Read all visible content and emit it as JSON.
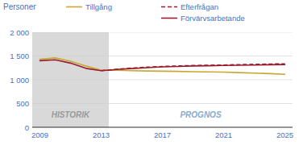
{
  "chart_data": {
    "type": "line",
    "y_label": "Personer",
    "xlim": [
      2008.5,
      2025.5
    ],
    "xticks": [
      2009,
      2013,
      2017,
      2021,
      2025
    ],
    "ylim": [
      0,
      2000
    ],
    "yticks": [
      0,
      500,
      {
        "value": 1000,
        "label": "1 000"
      },
      {
        "value": 1500,
        "label": "1 500"
      },
      {
        "value": 2000,
        "label": "2 000"
      }
    ],
    "grid": true,
    "legend": "top",
    "annotations": [
      {
        "text": "HISTORIK",
        "x_start": 2008.5,
        "x_end": 2013.5,
        "color": "#d9d9d9"
      },
      {
        "text": "PROGNOS"
      }
    ],
    "series": [
      {
        "name": "Tillgång",
        "color": "#c8a832",
        "line_style": "solid",
        "x": [
          2009,
          2010,
          2011,
          2012,
          2013,
          2014,
          2015,
          2016,
          2017,
          2018,
          2019,
          2020,
          2021,
          2022,
          2023,
          2024,
          2025
        ],
        "values": [
          1430,
          1460,
          1390,
          1290,
          1200,
          1200,
          1190,
          1185,
          1180,
          1175,
          1170,
          1165,
          1160,
          1150,
          1140,
          1130,
          1115
        ]
      },
      {
        "name": "Efterfrågan",
        "color": "#9b1c2e",
        "line_style": "dashed",
        "x": [
          2013,
          2014,
          2015,
          2016,
          2017,
          2018,
          2019,
          2020,
          2021,
          2022,
          2023,
          2024,
          2025
        ],
        "values": [
          1190,
          1220,
          1245,
          1265,
          1280,
          1290,
          1300,
          1305,
          1310,
          1318,
          1325,
          1330,
          1335
        ]
      },
      {
        "name": "Förvärvsarbetande",
        "color": "#9b1c2e",
        "line_style": "solid",
        "x": [
          2009,
          2010,
          2011,
          2012,
          2013,
          2013,
          2014,
          2015,
          2016,
          2017,
          2018,
          2019,
          2020,
          2021,
          2022,
          2023,
          2024,
          2025
        ],
        "values": [
          1400,
          1420,
          1350,
          1240,
          1190,
          1190,
          1215,
          1235,
          1255,
          1270,
          1280,
          1290,
          1295,
          1300,
          1305,
          1310,
          1315,
          1320
        ]
      }
    ]
  }
}
